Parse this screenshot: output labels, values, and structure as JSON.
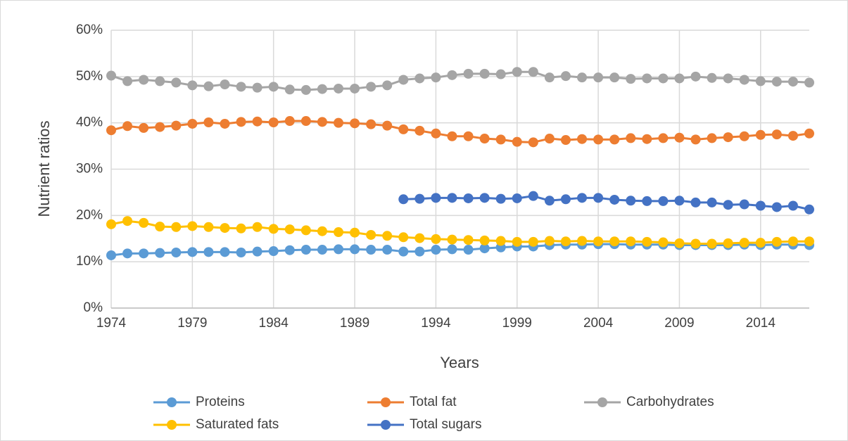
{
  "chart_data": {
    "type": "line",
    "y_label": "Nutrient ratios",
    "x_label": "Years",
    "x": [
      1974,
      1975,
      1976,
      1977,
      1978,
      1979,
      1980,
      1981,
      1982,
      1983,
      1984,
      1985,
      1986,
      1987,
      1988,
      1989,
      1990,
      1991,
      1992,
      1993,
      1994,
      1995,
      1996,
      1997,
      1998,
      1999,
      2000,
      2001,
      2002,
      2003,
      2004,
      2005,
      2006,
      2007,
      2008,
      2009,
      2010,
      2011,
      2012,
      2013,
      2014,
      2015,
      2016,
      2017
    ],
    "xlim": [
      1974,
      2017
    ],
    "xticks": [
      1974,
      1979,
      1984,
      1989,
      1994,
      1999,
      2004,
      2009,
      2014
    ],
    "ylim": [
      0,
      60
    ],
    "yticks": [
      {
        "value": 0,
        "label": "0%"
      },
      {
        "value": 10,
        "label": "10%"
      },
      {
        "value": 20,
        "label": "20%"
      },
      {
        "value": 30,
        "label": "30%"
      },
      {
        "value": 40,
        "label": "40%"
      },
      {
        "value": 50,
        "label": "50%"
      },
      {
        "value": 60,
        "label": "60%"
      }
    ],
    "grid": true,
    "legend": "bottom",
    "series": [
      {
        "name": "Proteins",
        "color": "#5b9bd5",
        "values": [
          11.4,
          11.8,
          11.8,
          11.9,
          12.0,
          12.1,
          12.1,
          12.1,
          12.0,
          12.2,
          12.3,
          12.5,
          12.6,
          12.6,
          12.7,
          12.7,
          12.6,
          12.6,
          12.2,
          12.2,
          12.6,
          12.7,
          12.6,
          12.9,
          13.1,
          13.3,
          13.3,
          13.6,
          13.7,
          13.7,
          13.8,
          13.8,
          13.7,
          13.7,
          13.7,
          13.6,
          13.6,
          13.6,
          13.6,
          13.7,
          13.6,
          13.7,
          13.7,
          13.6
        ]
      },
      {
        "name": "Total fat",
        "color": "#ed7d31",
        "values": [
          38.4,
          39.3,
          38.9,
          39.1,
          39.4,
          39.8,
          40.1,
          39.8,
          40.2,
          40.3,
          40.1,
          40.4,
          40.4,
          40.2,
          40.0,
          39.9,
          39.7,
          39.4,
          38.6,
          38.3,
          37.7,
          37.1,
          37.1,
          36.6,
          36.4,
          35.9,
          35.8,
          36.6,
          36.3,
          36.5,
          36.4,
          36.4,
          36.7,
          36.5,
          36.7,
          36.8,
          36.4,
          36.7,
          36.9,
          37.1,
          37.4,
          37.5,
          37.2,
          37.7
        ]
      },
      {
        "name": "Carbohydrates",
        "color": "#a5a5a5",
        "values": [
          50.2,
          49.0,
          49.3,
          49.0,
          48.7,
          48.1,
          47.9,
          48.3,
          47.8,
          47.6,
          47.8,
          47.2,
          47.1,
          47.3,
          47.4,
          47.4,
          47.8,
          48.1,
          49.3,
          49.6,
          49.8,
          50.3,
          50.6,
          50.6,
          50.5,
          51.0,
          51.0,
          49.8,
          50.1,
          49.8,
          49.8,
          49.8,
          49.5,
          49.6,
          49.6,
          49.6,
          50.0,
          49.7,
          49.6,
          49.3,
          49.0,
          48.9,
          48.9,
          48.7
        ]
      },
      {
        "name": "Saturated fats",
        "color": "#ffc000",
        "values": [
          18.1,
          18.8,
          18.4,
          17.6,
          17.5,
          17.7,
          17.5,
          17.3,
          17.2,
          17.5,
          17.1,
          17.0,
          16.8,
          16.6,
          16.4,
          16.3,
          15.8,
          15.6,
          15.3,
          15.1,
          14.9,
          14.8,
          14.7,
          14.6,
          14.5,
          14.3,
          14.3,
          14.5,
          14.4,
          14.5,
          14.4,
          14.4,
          14.4,
          14.3,
          14.2,
          14.0,
          13.9,
          13.9,
          14.0,
          14.1,
          14.1,
          14.3,
          14.4,
          14.4
        ]
      },
      {
        "name": "Total sugars",
        "color": "#4472c4",
        "values": [
          null,
          null,
          null,
          null,
          null,
          null,
          null,
          null,
          null,
          null,
          null,
          null,
          null,
          null,
          null,
          null,
          null,
          null,
          23.5,
          23.6,
          23.8,
          23.8,
          23.7,
          23.8,
          23.6,
          23.7,
          24.2,
          23.2,
          23.5,
          23.8,
          23.8,
          23.4,
          23.2,
          23.1,
          23.1,
          23.2,
          22.8,
          22.8,
          22.3,
          22.4,
          22.1,
          21.8,
          22.1,
          21.3
        ]
      }
    ]
  }
}
